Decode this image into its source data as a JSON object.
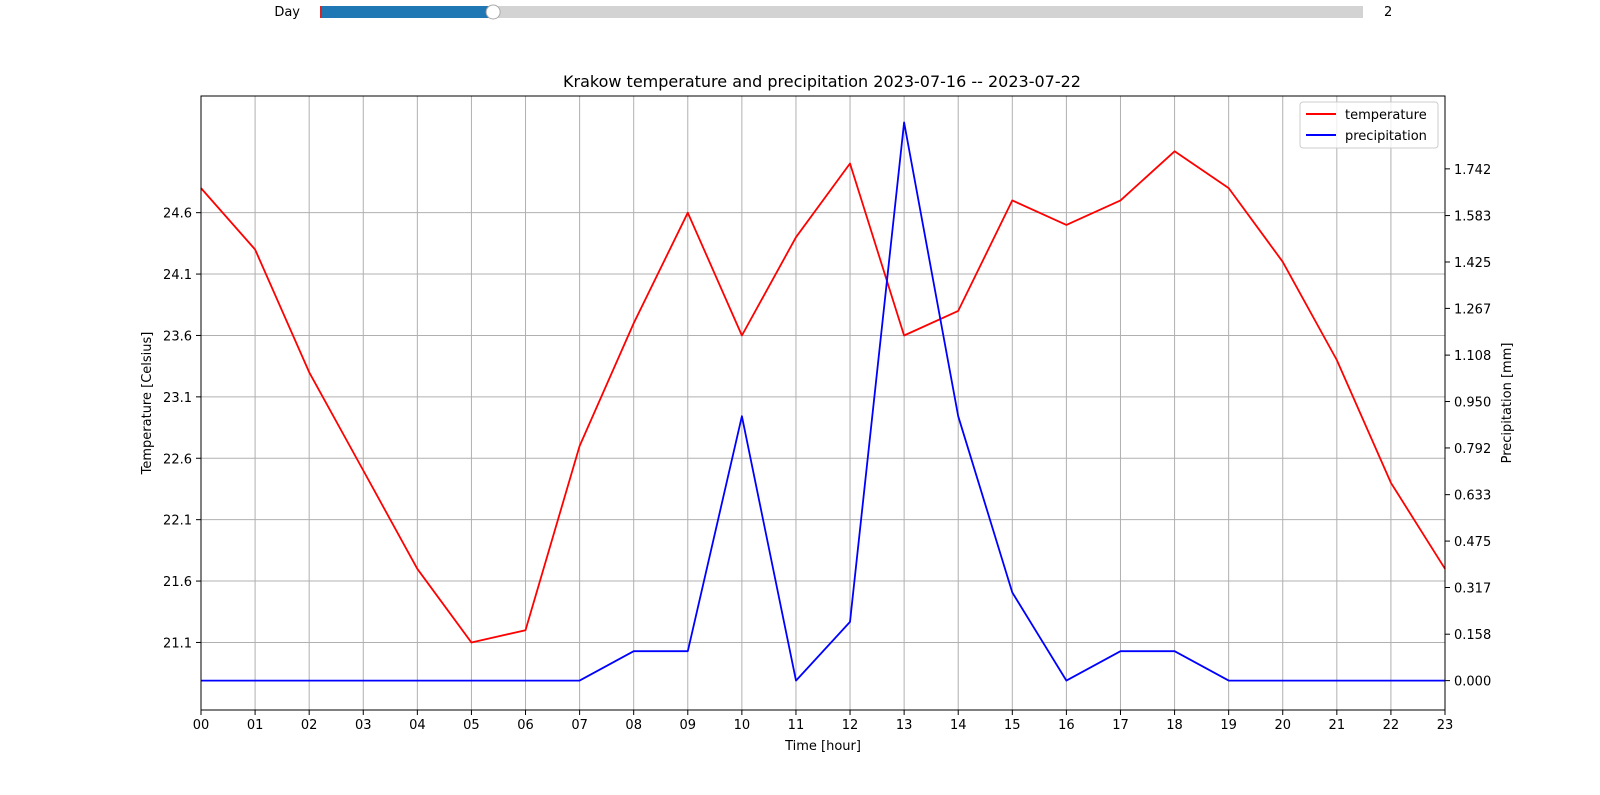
{
  "slider": {
    "label": "Day",
    "value_text": "2",
    "fill_fraction": 0.166,
    "track_color": "#d3d3d3",
    "fill_color": "#1f77b4"
  },
  "chart_data": {
    "type": "line",
    "title": "Krakow temperature and precipitation 2023-07-16  --  2023-07-22",
    "xlabel": "Time [hour]",
    "ylabel_left": "Temperature [Celsius]",
    "ylabel_right": "Precipitation [mm]",
    "categories": [
      "00",
      "01",
      "02",
      "03",
      "04",
      "05",
      "06",
      "07",
      "08",
      "09",
      "10",
      "11",
      "12",
      "13",
      "14",
      "15",
      "16",
      "17",
      "18",
      "19",
      "20",
      "21",
      "22",
      "23"
    ],
    "left_ticks": [
      "21.1",
      "21.6",
      "22.1",
      "22.6",
      "23.1",
      "23.6",
      "24.1",
      "24.6"
    ],
    "right_ticks": [
      "0.000",
      "0.158",
      "0.317",
      "0.475",
      "0.633",
      "0.792",
      "0.950",
      "1.108",
      "1.267",
      "1.425",
      "1.583",
      "1.742"
    ],
    "ylim_left": [
      20.55,
      25.55
    ],
    "ylim_right": [
      -0.1,
      1.99
    ],
    "grid": true,
    "legend_position": "top-right",
    "series": [
      {
        "name": "temperature",
        "axis": "left",
        "color": "#ff0000",
        "values": [
          24.8,
          24.3,
          23.3,
          22.5,
          21.7,
          21.1,
          21.2,
          22.7,
          23.7,
          24.6,
          23.6,
          24.4,
          25.0,
          23.6,
          23.8,
          24.7,
          24.5,
          24.7,
          25.1,
          24.8,
          24.2,
          23.4,
          22.4,
          21.7
        ]
      },
      {
        "name": "precipitation",
        "axis": "right",
        "color": "#0000ff",
        "values": [
          0.0,
          0.0,
          0.0,
          0.0,
          0.0,
          0.0,
          0.0,
          0.0,
          0.1,
          0.1,
          0.9,
          0.0,
          0.2,
          1.9,
          0.9,
          0.3,
          0.0,
          0.1,
          0.1,
          0.0,
          0.0,
          0.0,
          0.0,
          0.0
        ]
      }
    ]
  }
}
